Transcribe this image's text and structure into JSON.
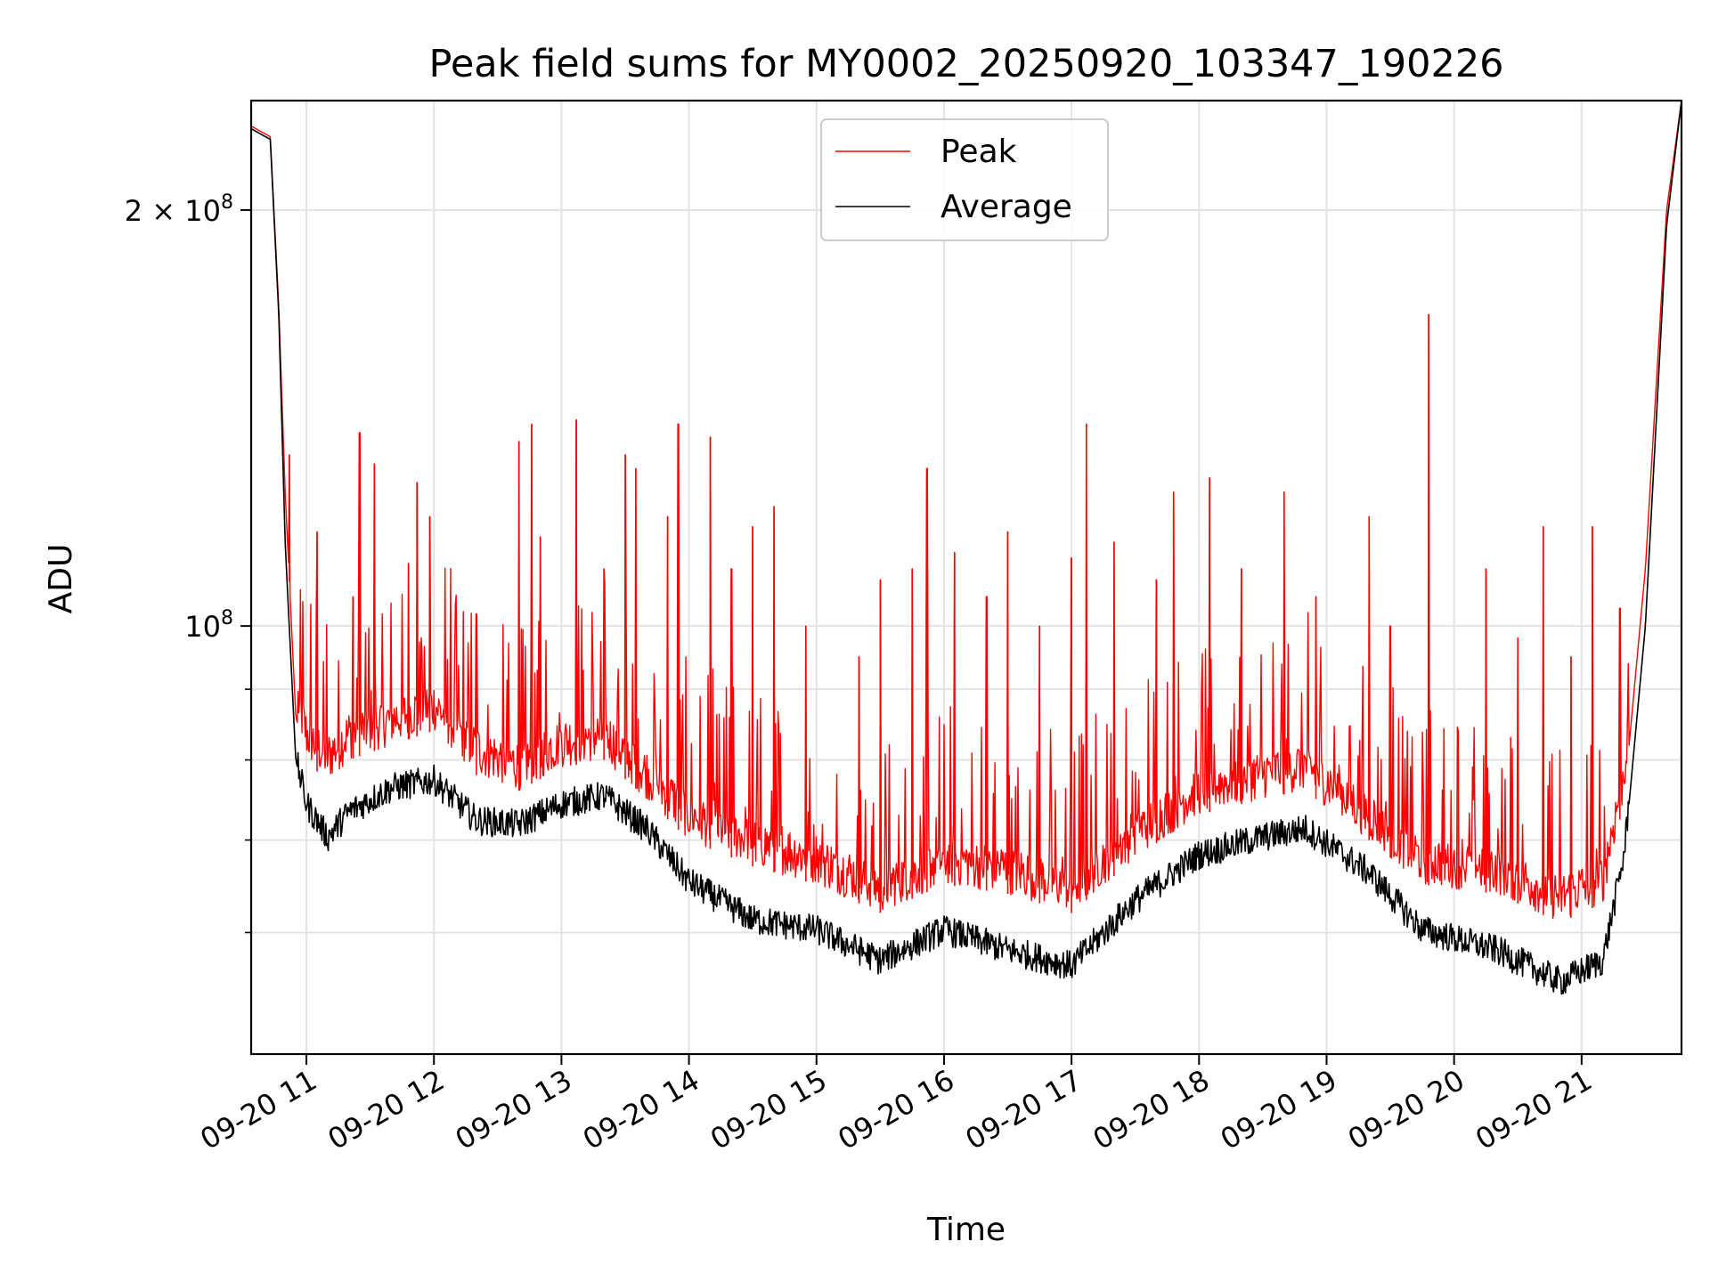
{
  "chart_data": {
    "type": "line",
    "title": "Peak field sums for MY0002_20250920_103347_190226",
    "xlabel": "Time",
    "ylabel": "ADU",
    "y_scale": "log",
    "ylim": [
      49000000,
      240000000
    ],
    "xlim": [
      "09-20 10:34",
      "09-20 21:47"
    ],
    "grid": true,
    "legend_position": "upper center",
    "x_ticks": [
      "09-20 11",
      "09-20 12",
      "09-20 13",
      "09-20 14",
      "09-20 15",
      "09-20 16",
      "09-20 17",
      "09-20 18",
      "09-20 19",
      "09-20 20",
      "09-20 21"
    ],
    "y_ticks": [
      {
        "value": 200000000,
        "label": "2 × 10^8"
      },
      {
        "value": 100000000,
        "label": "10^8"
      }
    ],
    "series": [
      {
        "name": "Peak",
        "color": "#ff0000",
        "points": [
          [
            "09-20 10:34",
            230000000
          ],
          [
            "09-20 10:43",
            226000000
          ],
          [
            "09-20 10:47",
            170000000
          ],
          [
            "09-20 10:50",
            125000000
          ],
          [
            "09-20 10:55",
            86000000
          ],
          [
            "09-20 11:00",
            80000000
          ],
          [
            "09-20 11:10",
            77000000
          ],
          [
            "09-20 11:20",
            80000000
          ],
          [
            "09-20 11:40",
            82000000
          ],
          [
            "09-20 12:00",
            84000000
          ],
          [
            "09-20 12:20",
            78000000
          ],
          [
            "09-20 12:40",
            76000000
          ],
          [
            "09-20 13:00",
            79000000
          ],
          [
            "09-20 13:20",
            80000000
          ],
          [
            "09-20 13:40",
            75000000
          ],
          [
            "09-20 14:00",
            70000000
          ],
          [
            "09-20 14:30",
            67000000
          ],
          [
            "09-20 15:00",
            65000000
          ],
          [
            "09-20 15:30",
            62000000
          ],
          [
            "09-20 16:00",
            65000000
          ],
          [
            "09-20 16:30",
            64000000
          ],
          [
            "09-20 17:00",
            62000000
          ],
          [
            "09-20 17:30",
            68000000
          ],
          [
            "09-20 18:00",
            73000000
          ],
          [
            "09-20 18:30",
            75000000
          ],
          [
            "09-20 18:50",
            76000000
          ],
          [
            "09-20 19:20",
            70000000
          ],
          [
            "09-20 19:45",
            65000000
          ],
          [
            "09-20 20:20",
            64000000
          ],
          [
            "09-20 20:50",
            61000000
          ],
          [
            "09-20 21:10",
            63000000
          ],
          [
            "09-20 21:20",
            75000000
          ],
          [
            "09-20 21:30",
            110000000
          ],
          [
            "09-20 21:40",
            200000000
          ],
          [
            "09-20 21:47",
            240000000
          ]
        ],
        "spikes": [
          [
            "09-20 10:52",
            133000000
          ],
          [
            "09-20 11:05",
            117000000
          ],
          [
            "09-20 11:22",
            105000000
          ],
          [
            "09-20 11:25",
            138000000
          ],
          [
            "09-20 11:32",
            131000000
          ],
          [
            "09-20 11:48",
            111000000
          ],
          [
            "09-20 11:52",
            127000000
          ],
          [
            "09-20 11:58",
            120000000
          ],
          [
            "09-20 12:20",
            102000000
          ],
          [
            "09-20 12:40",
            136000000
          ],
          [
            "09-20 12:46",
            140000000
          ],
          [
            "09-20 12:50",
            116000000
          ],
          [
            "09-20 13:07",
            141000000
          ],
          [
            "09-20 13:20",
            110000000
          ],
          [
            "09-20 13:30",
            133000000
          ],
          [
            "09-20 13:35",
            130000000
          ],
          [
            "09-20 13:50",
            120000000
          ],
          [
            "09-20 13:55",
            140000000
          ],
          [
            "09-20 14:10",
            137000000
          ],
          [
            "09-20 14:20",
            110000000
          ],
          [
            "09-20 14:30",
            118000000
          ],
          [
            "09-20 14:40",
            122000000
          ],
          [
            "09-20 14:55",
            100000000
          ],
          [
            "09-20 15:20",
            95000000
          ],
          [
            "09-20 15:30",
            108000000
          ],
          [
            "09-20 15:45",
            110000000
          ],
          [
            "09-20 15:52",
            130000000
          ],
          [
            "09-20 16:05",
            113000000
          ],
          [
            "09-20 16:20",
            105000000
          ],
          [
            "09-20 16:30",
            117000000
          ],
          [
            "09-20 16:45",
            100000000
          ],
          [
            "09-20 17:00",
            112000000
          ],
          [
            "09-20 17:07",
            140000000
          ],
          [
            "09-20 17:20",
            115000000
          ],
          [
            "09-20 17:40",
            108000000
          ],
          [
            "09-20 17:48",
            125000000
          ],
          [
            "09-20 18:05",
            128000000
          ],
          [
            "09-20 18:20",
            110000000
          ],
          [
            "09-20 18:40",
            125000000
          ],
          [
            "09-20 18:55",
            105000000
          ],
          [
            "09-20 19:20",
            120000000
          ],
          [
            "09-20 19:30",
            100000000
          ],
          [
            "09-20 19:48",
            168000000
          ],
          [
            "09-20 20:02",
            84000000
          ],
          [
            "09-20 20:15",
            110000000
          ],
          [
            "09-20 20:30",
            98000000
          ],
          [
            "09-20 20:42",
            118000000
          ],
          [
            "09-20 20:55",
            95000000
          ],
          [
            "09-20 21:05",
            118000000
          ],
          [
            "09-20 21:18",
            103000000
          ]
        ]
      },
      {
        "name": "Average",
        "color": "#000000",
        "points": [
          [
            "09-20 10:34",
            229000000
          ],
          [
            "09-20 10:43",
            225000000
          ],
          [
            "09-20 10:47",
            168000000
          ],
          [
            "09-20 10:50",
            115000000
          ],
          [
            "09-20 10:55",
            80000000
          ],
          [
            "09-20 11:00",
            74000000
          ],
          [
            "09-20 11:10",
            70000000
          ],
          [
            "09-20 11:20",
            73000000
          ],
          [
            "09-20 11:40",
            76000000
          ],
          [
            "09-20 12:00",
            77000000
          ],
          [
            "09-20 12:20",
            72000000
          ],
          [
            "09-20 12:40",
            71500000
          ],
          [
            "09-20 13:00",
            74000000
          ],
          [
            "09-20 13:20",
            75000000
          ],
          [
            "09-20 13:40",
            71000000
          ],
          [
            "09-20 14:00",
            65000000
          ],
          [
            "09-20 14:30",
            61000000
          ],
          [
            "09-20 15:00",
            60000000
          ],
          [
            "09-20 15:30",
            57000000
          ],
          [
            "09-20 16:00",
            60000000
          ],
          [
            "09-20 16:30",
            58000000
          ],
          [
            "09-20 17:00",
            56500000
          ],
          [
            "09-20 17:30",
            63000000
          ],
          [
            "09-20 18:00",
            68000000
          ],
          [
            "09-20 18:30",
            70000000
          ],
          [
            "09-20 18:50",
            71000000
          ],
          [
            "09-20 19:20",
            66000000
          ],
          [
            "09-20 19:45",
            60000000
          ],
          [
            "09-20 20:20",
            58000000
          ],
          [
            "09-20 20:50",
            55000000
          ],
          [
            "09-20 21:10",
            57000000
          ],
          [
            "09-20 21:20",
            68000000
          ],
          [
            "09-20 21:30",
            100000000
          ],
          [
            "09-20 21:40",
            195000000
          ],
          [
            "09-20 21:47",
            240000000
          ]
        ]
      }
    ]
  }
}
